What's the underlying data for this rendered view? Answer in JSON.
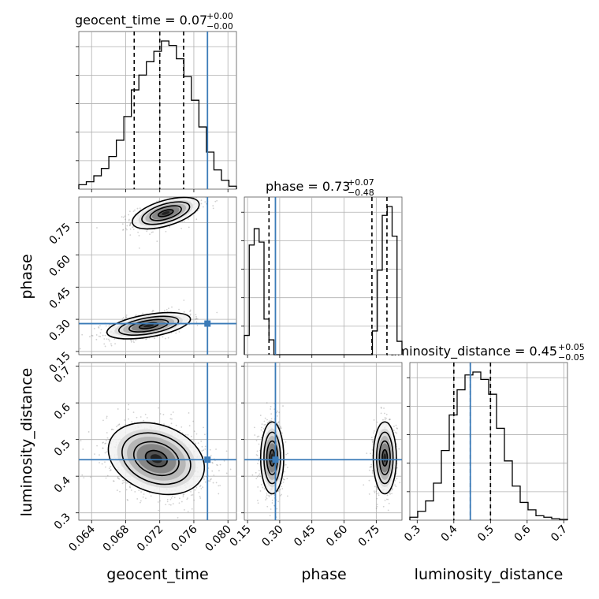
{
  "chart_data": {
    "type": "corner",
    "truth_color": "#3b7bb8",
    "line_color": "#000000",
    "grid": true,
    "parameters": [
      {
        "name": "geocent_time",
        "truth": 0.0776,
        "range": [
          0.0625,
          0.081
        ],
        "ticks": [
          0.064,
          0.068,
          0.072,
          0.076,
          0.08
        ],
        "tick_labels": [
          "0.064",
          "0.068",
          "0.072",
          "0.076",
          "0.080"
        ],
        "quantiles": [
          0.069,
          0.072,
          0.0748
        ],
        "title_main": "geocent_time = 0.07",
        "title_plus": "+0.00",
        "title_minus": "−0.00"
      },
      {
        "name": "phase",
        "truth": 0.28,
        "range": [
          0.135,
          0.87
        ],
        "ticks": [
          0.15,
          0.3,
          0.45,
          0.6,
          0.75
        ],
        "tick_labels": [
          "0.15",
          "0.30",
          "0.45",
          "0.60",
          "0.75"
        ],
        "quantiles": [
          0.25,
          0.73,
          0.8
        ],
        "title_main": "phase = 0.73",
        "title_plus": "+0.07",
        "title_minus": "−0.48"
      },
      {
        "name": "luminosity_distance",
        "truth": 0.445,
        "range": [
          0.28,
          0.71
        ],
        "ticks": [
          0.3,
          0.4,
          0.5,
          0.6,
          0.7
        ],
        "tick_labels": [
          "0.3",
          "0.4",
          "0.5",
          "0.6",
          "0.7"
        ],
        "quantiles": [
          0.4,
          0.445,
          0.5
        ],
        "title_main": "luminosity_distance = 0.45",
        "title_plus": "+0.05",
        "title_minus": "−0.05"
      }
    ],
    "histograms": [
      {
        "param": "geocent_time",
        "counts": [
          0.03,
          0.05,
          0.09,
          0.14,
          0.22,
          0.33,
          0.49,
          0.67,
          0.77,
          0.86,
          0.93,
          1.0,
          0.97,
          0.88,
          0.76,
          0.6,
          0.42,
          0.25,
          0.13,
          0.06,
          0.02
        ]
      },
      {
        "param": "phase",
        "counts": [
          0.13,
          0.74,
          0.85,
          0.76,
          0.24,
          0.1,
          0,
          0,
          0,
          0,
          0,
          0,
          0,
          0,
          0,
          0,
          0,
          0,
          0,
          0,
          0,
          0,
          0,
          0,
          0,
          0,
          0.16,
          0.57,
          0.94,
          1.0,
          0.8,
          0.09
        ]
      },
      {
        "param": "luminosity_distance",
        "counts": [
          0.02,
          0.06,
          0.13,
          0.25,
          0.47,
          0.71,
          0.88,
          0.98,
          1.0,
          0.95,
          0.85,
          0.62,
          0.4,
          0.23,
          0.12,
          0.07,
          0.03,
          0.02,
          0.01,
          0.005
        ]
      }
    ],
    "pair_modes": [
      {
        "x": "geocent_time",
        "y": "phase",
        "modes": [
          {
            "cx": 0.0727,
            "cy": 0.795,
            "sx": 0.0016,
            "sy": 0.03,
            "rho": 0.55,
            "w": 0.5
          },
          {
            "cx": 0.0707,
            "cy": 0.27,
            "sx": 0.002,
            "sy": 0.025,
            "rho": 0.5,
            "w": 0.5
          }
        ]
      },
      {
        "x": "geocent_time",
        "y": "luminosity_distance",
        "modes": [
          {
            "cx": 0.0716,
            "cy": 0.448,
            "sx": 0.0023,
            "sy": 0.04,
            "rho": -0.25,
            "w": 1.0
          }
        ]
      },
      {
        "x": "phase",
        "y": "luminosity_distance",
        "modes": [
          {
            "cx": 0.265,
            "cy": 0.45,
            "sx": 0.022,
            "sy": 0.04,
            "rho": 0.0,
            "w": 0.5
          },
          {
            "cx": 0.79,
            "cy": 0.45,
            "sx": 0.022,
            "sy": 0.04,
            "rho": 0.0,
            "w": 0.5
          }
        ]
      }
    ]
  }
}
